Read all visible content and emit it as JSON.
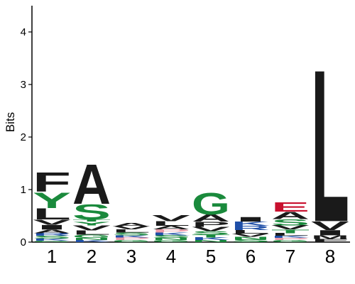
{
  "chart_data": {
    "type": "sequence-logo",
    "title": "",
    "xlabel": "",
    "ylabel": "Bits",
    "ylim": [
      0,
      4.5
    ],
    "y_ticks": [
      "0",
      "1",
      "2",
      "3",
      "4"
    ],
    "positions": [
      "1",
      "2",
      "3",
      "4",
      "5",
      "6",
      "7",
      "8"
    ],
    "colors": {
      "hydrophobic": "#1a1a1a",
      "polar": "#1a8a3c",
      "basic": "#1f4fa8",
      "acidic": "#c8102e",
      "special": "#e89aa8"
    },
    "stacks": [
      {
        "position": "1",
        "letters": [
          {
            "aa": "G",
            "bits": 0.03,
            "color": "#1a8a3c"
          },
          {
            "aa": "K",
            "bits": 0.04,
            "color": "#1f4fa8"
          },
          {
            "aa": "S",
            "bits": 0.05,
            "color": "#1a8a3c"
          },
          {
            "aa": "R",
            "bits": 0.05,
            "color": "#1f4fa8"
          },
          {
            "aa": "A",
            "bits": 0.07,
            "color": "#1a1a1a"
          },
          {
            "aa": "I",
            "bits": 0.09,
            "color": "#1a1a1a"
          },
          {
            "aa": "V",
            "bits": 0.1,
            "color": "#1a1a1a"
          },
          {
            "aa": "L",
            "bits": 0.22,
            "color": "#1a1a1a"
          },
          {
            "aa": "Y",
            "bits": 0.31,
            "color": "#1a8a3c"
          },
          {
            "aa": "F",
            "bits": 0.38,
            "color": "#1a1a1a"
          }
        ]
      },
      {
        "position": "2",
        "letters": [
          {
            "aa": "K",
            "bits": 0.04,
            "color": "#1f4fa8"
          },
          {
            "aa": "N",
            "bits": 0.04,
            "color": "#1a8a3c"
          },
          {
            "aa": "G",
            "bits": 0.06,
            "color": "#1a8a3c"
          },
          {
            "aa": "L",
            "bits": 0.08,
            "color": "#1a1a1a"
          },
          {
            "aa": "V",
            "bits": 0.1,
            "color": "#1a1a1a"
          },
          {
            "aa": "Y",
            "bits": 0.07,
            "color": "#1a8a3c"
          },
          {
            "aa": "T",
            "bits": 0.04,
            "color": "#1a8a3c"
          },
          {
            "aa": "S",
            "bits": 0.3,
            "color": "#1a8a3c"
          },
          {
            "aa": "A",
            "bits": 0.78,
            "color": "#1a1a1a"
          }
        ]
      },
      {
        "position": "3",
        "letters": [
          {
            "aa": "G",
            "bits": 0.04,
            "color": "#1a8a3c"
          },
          {
            "aa": "P",
            "bits": 0.05,
            "color": "#e89aa8"
          },
          {
            "aa": "K",
            "bits": 0.04,
            "color": "#1f4fa8"
          },
          {
            "aa": "S",
            "bits": 0.05,
            "color": "#1a8a3c"
          },
          {
            "aa": "L",
            "bits": 0.06,
            "color": "#1a1a1a"
          },
          {
            "aa": "V",
            "bits": 0.06,
            "color": "#1a1a1a"
          },
          {
            "aa": "A",
            "bits": 0.07,
            "color": "#1a1a1a"
          }
        ]
      },
      {
        "position": "4",
        "letters": [
          {
            "aa": "G",
            "bits": 0.04,
            "color": "#1a8a3c"
          },
          {
            "aa": "N",
            "bits": 0.04,
            "color": "#1a8a3c"
          },
          {
            "aa": "S",
            "bits": 0.05,
            "color": "#1a8a3c"
          },
          {
            "aa": "K",
            "bits": 0.05,
            "color": "#1f4fa8"
          },
          {
            "aa": "P",
            "bits": 0.06,
            "color": "#e89aa8"
          },
          {
            "aa": "A",
            "bits": 0.07,
            "color": "#1a1a1a"
          },
          {
            "aa": "L",
            "bits": 0.09,
            "color": "#1a1a1a"
          },
          {
            "aa": "V",
            "bits": 0.12,
            "color": "#1a1a1a"
          }
        ]
      },
      {
        "position": "5",
        "letters": [
          {
            "aa": "N",
            "bits": 0.04,
            "color": "#1a8a3c"
          },
          {
            "aa": "K",
            "bits": 0.05,
            "color": "#1f4fa8"
          },
          {
            "aa": "T",
            "bits": 0.05,
            "color": "#1a8a3c"
          },
          {
            "aa": "S",
            "bits": 0.07,
            "color": "#1a8a3c"
          },
          {
            "aa": "V",
            "bits": 0.08,
            "color": "#1a1a1a"
          },
          {
            "aa": "P",
            "bits": 0.1,
            "color": "#1a1a1a"
          },
          {
            "aa": "A",
            "bits": 0.14,
            "color": "#1a1a1a"
          },
          {
            "aa": "G",
            "bits": 0.42,
            "color": "#1a8a3c"
          }
        ]
      },
      {
        "position": "6",
        "letters": [
          {
            "aa": "S",
            "bits": 0.05,
            "color": "#1a8a3c"
          },
          {
            "aa": "N",
            "bits": 0.05,
            "color": "#1a8a3c"
          },
          {
            "aa": "V",
            "bits": 0.06,
            "color": "#1a1a1a"
          },
          {
            "aa": "L",
            "bits": 0.07,
            "color": "#1a1a1a"
          },
          {
            "aa": "R",
            "bits": 0.08,
            "color": "#1f4fa8"
          },
          {
            "aa": "K",
            "bits": 0.08,
            "color": "#1f4fa8"
          },
          {
            "aa": "I",
            "bits": 0.09,
            "color": "#1a1a1a"
          }
        ]
      },
      {
        "position": "7",
        "letters": [
          {
            "aa": "G",
            "bits": 0.04,
            "color": "#1a8a3c"
          },
          {
            "aa": "P",
            "bits": 0.04,
            "color": "#e89aa8"
          },
          {
            "aa": "K",
            "bits": 0.04,
            "color": "#1f4fa8"
          },
          {
            "aa": "L",
            "bits": 0.05,
            "color": "#1a1a1a"
          },
          {
            "aa": "T",
            "bits": 0.07,
            "color": "#1a8a3c"
          },
          {
            "aa": "V",
            "bits": 0.08,
            "color": "#1a1a1a"
          },
          {
            "aa": "S",
            "bits": 0.12,
            "color": "#1a8a3c"
          },
          {
            "aa": "A",
            "bits": 0.14,
            "color": "#1a1a1a"
          },
          {
            "aa": "E",
            "bits": 0.18,
            "color": "#c8102e"
          }
        ]
      },
      {
        "position": "8",
        "letters": [
          {
            "aa": "F",
            "bits": 0.06,
            "color": "#1a1a1a"
          },
          {
            "aa": "M",
            "bits": 0.07,
            "color": "#1a1a1a"
          },
          {
            "aa": "I",
            "bits": 0.1,
            "color": "#1a1a1a"
          },
          {
            "aa": "V",
            "bits": 0.17,
            "color": "#1a1a1a"
          },
          {
            "aa": "L",
            "bits": 2.98,
            "color": "#1a1a1a"
          }
        ]
      }
    ]
  }
}
